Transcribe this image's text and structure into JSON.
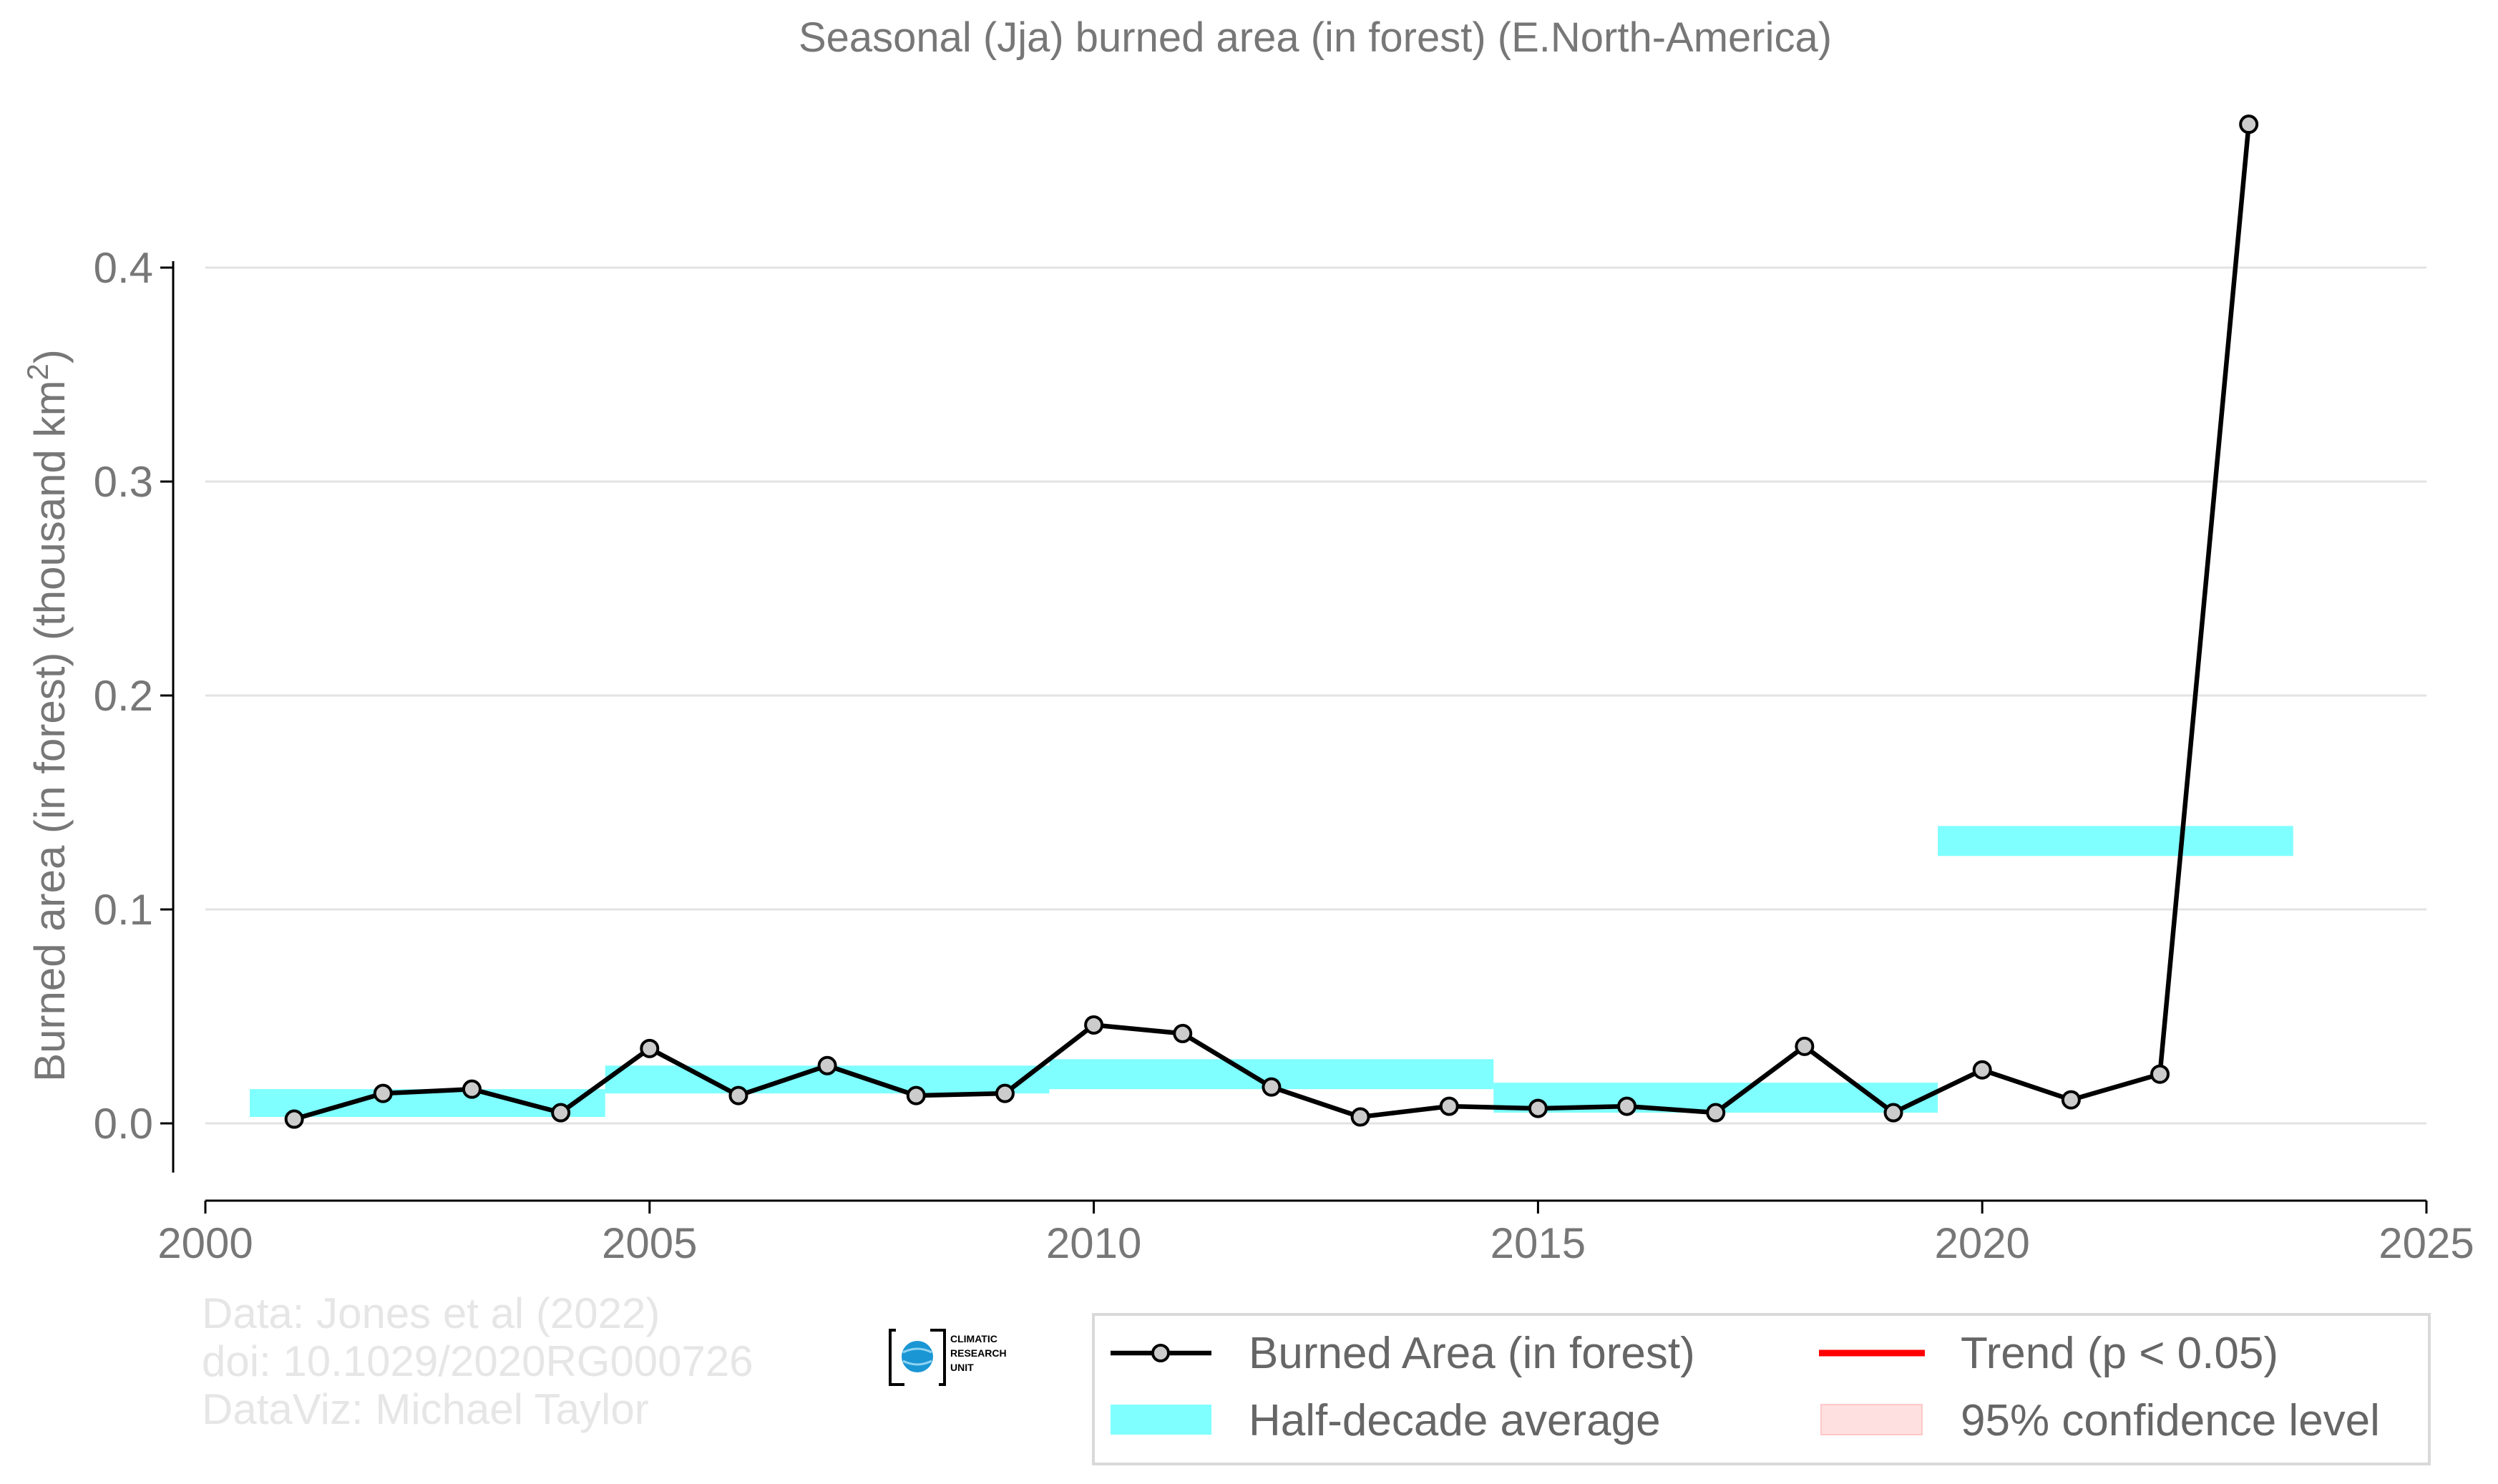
{
  "chart_data": {
    "type": "line",
    "title": "Seasonal (Jja) burned area (in forest) (E.North-America)",
    "xlabel": "",
    "ylabel": "Burned area (in forest) (thousand km²)",
    "xlim": [
      2000,
      2025
    ],
    "ylim": [
      -0.035,
      0.47
    ],
    "x_ticks": [
      2000,
      2005,
      2010,
      2015,
      2020,
      2025
    ],
    "x_tick_labels": [
      "2000",
      "2005",
      "2010",
      "2015",
      "2020",
      "2025"
    ],
    "y_ticks": [
      0.0,
      0.1,
      0.2,
      0.3,
      0.4
    ],
    "y_tick_labels": [
      "0.0",
      "0.1",
      "0.2",
      "0.3",
      "0.4"
    ],
    "grid": true,
    "series": [
      {
        "name": "Burned Area (in forest)",
        "color": "#000000",
        "x": [
          2001,
          2002,
          2003,
          2004,
          2005,
          2006,
          2007,
          2008,
          2009,
          2010,
          2011,
          2012,
          2013,
          2014,
          2015,
          2016,
          2017,
          2018,
          2019,
          2020,
          2021,
          2022,
          2023
        ],
        "values": [
          0.002,
          0.014,
          0.016,
          0.005,
          0.035,
          0.013,
          0.027,
          0.013,
          0.014,
          0.046,
          0.042,
          0.017,
          0.003,
          0.008,
          0.007,
          0.008,
          0.005,
          0.036,
          0.005,
          0.025,
          0.011,
          0.023,
          0.467
        ]
      }
    ],
    "half_decade_average": {
      "name": "Half-decade average",
      "color": "#7fffff",
      "bands": [
        {
          "x_start": 2000.5,
          "x_end": 2004.5,
          "low": 0.003,
          "high": 0.016
        },
        {
          "x_start": 2004.5,
          "x_end": 2009.5,
          "low": 0.014,
          "high": 0.027
        },
        {
          "x_start": 2009.5,
          "x_end": 2014.5,
          "low": 0.016,
          "high": 0.03
        },
        {
          "x_start": 2014.5,
          "x_end": 2019.5,
          "low": 0.005,
          "high": 0.019
        },
        {
          "x_start": 2019.5,
          "x_end": 2023.5,
          "low": 0.125,
          "high": 0.139
        }
      ]
    },
    "legend": {
      "placement": "bottom-right",
      "items": [
        {
          "label": "Burned Area (in forest)",
          "kind": "line-point",
          "color": "#000000"
        },
        {
          "label": "Trend (p < 0.05)",
          "kind": "line",
          "color": "#ff0000"
        },
        {
          "label": "Half-decade average",
          "kind": "band",
          "color": "#7fffff"
        },
        {
          "label": "95% confidence level",
          "kind": "band",
          "color": "#ffe0e0"
        }
      ]
    }
  },
  "credits": {
    "line1": "Data: Jones et al (2022)",
    "line2": "doi: 10.1029/2020RG000726",
    "line3": "DataViz: Michael Taylor"
  },
  "logo": {
    "line1": "CLIMATIC",
    "line2": "RESEARCH",
    "line3": "UNIT"
  }
}
